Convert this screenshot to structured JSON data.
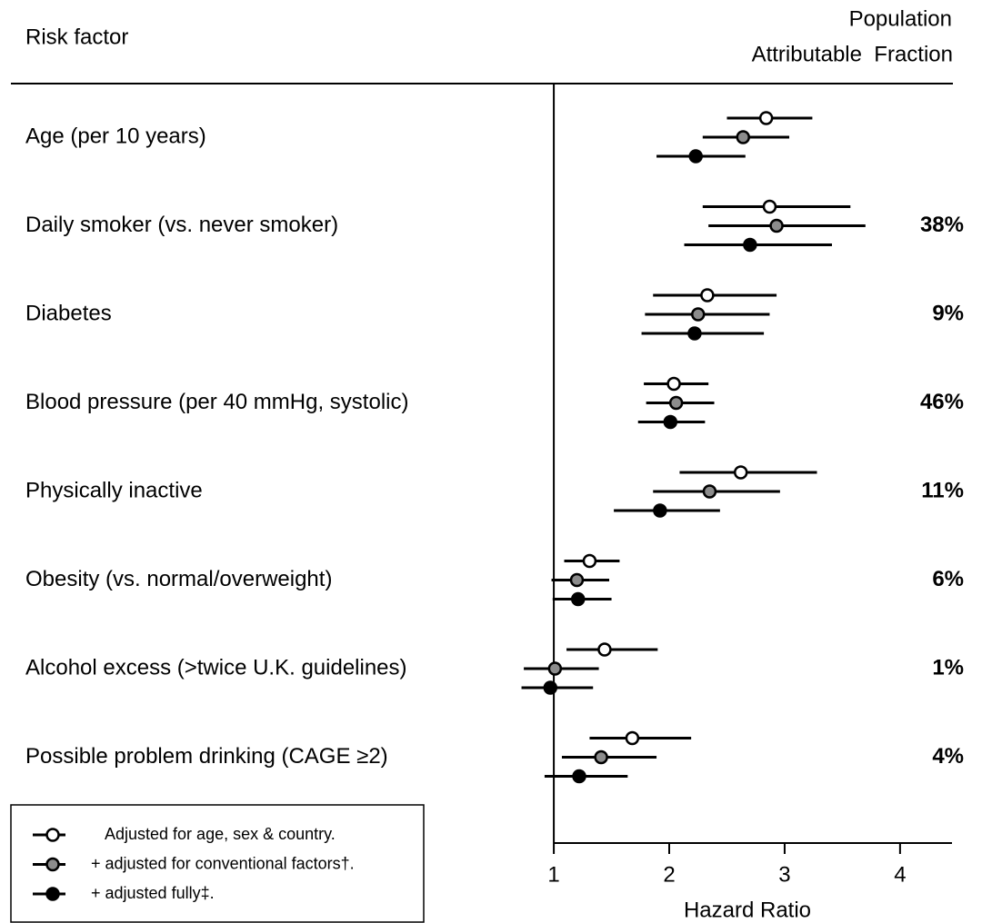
{
  "chart_data": {
    "type": "forest",
    "row_header": "Risk factor",
    "paf_header": [
      "Population",
      "Attributable  Fraction"
    ],
    "x_label": "Hazard Ratio",
    "categories": [
      "Age (per 10 years)",
      "Daily smoker (vs. never smoker)",
      "Diabetes",
      "Blood pressure (per 40 mmHg, systolic)",
      "Physically inactive",
      "Obesity (vs. normal/overweight)",
      "Alcohol excess (>twice U.K. guidelines)",
      "Possible problem drinking (CAGE ≥2)"
    ],
    "paf": [
      null,
      "38%",
      "9%",
      "46%",
      "11%",
      "6%",
      "1%",
      "4%"
    ],
    "series": [
      {
        "name": "Adjusted for age, sex & country.",
        "color": "#ffffff",
        "values": [
          2.84,
          2.87,
          2.33,
          2.04,
          2.62,
          1.31,
          1.44,
          1.68
        ],
        "lower": [
          2.5,
          2.29,
          1.86,
          1.78,
          2.09,
          1.09,
          1.11,
          1.31
        ],
        "upper": [
          3.24,
          3.57,
          2.93,
          2.34,
          3.28,
          1.57,
          1.9,
          2.19
        ]
      },
      {
        "name": "+ adjusted for conventional factors†.",
        "color": "#8c8c8c",
        "values": [
          2.64,
          2.93,
          2.25,
          2.06,
          2.35,
          1.2,
          1.01,
          1.41
        ],
        "lower": [
          2.29,
          2.34,
          1.79,
          1.8,
          1.86,
          0.98,
          0.74,
          1.07
        ],
        "upper": [
          3.04,
          3.7,
          2.87,
          2.39,
          2.96,
          1.48,
          1.39,
          1.89
        ]
      },
      {
        "name": "+ adjusted fully‡.",
        "color": "#000000",
        "values": [
          2.23,
          2.7,
          2.22,
          2.01,
          1.92,
          1.21,
          0.97,
          1.22
        ],
        "lower": [
          1.89,
          2.13,
          1.76,
          1.73,
          1.52,
          0.99,
          0.72,
          0.92
        ],
        "upper": [
          2.66,
          3.41,
          2.82,
          2.31,
          2.44,
          1.5,
          1.34,
          1.64
        ]
      }
    ],
    "xlim": [
      0.7,
      4.45
    ],
    "xticks": [
      1,
      2,
      3,
      4
    ]
  }
}
